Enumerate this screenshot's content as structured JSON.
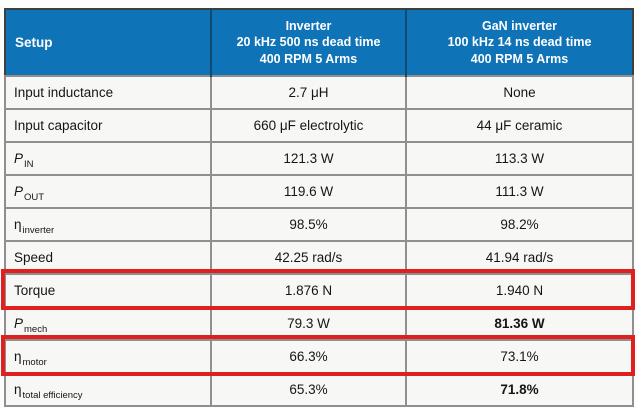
{
  "colors": {
    "header_bg": "#0f73b7",
    "header_text": "#ffffff",
    "cell_bg": "#f7f7f5",
    "grid_line": "#8f8f8f",
    "highlight_border": "#e01f1f",
    "body_text": "#151515"
  },
  "header": {
    "setup": "Setup",
    "inverter": {
      "line1": "Inverter",
      "line2": "20 kHz 500 ns dead time",
      "line3": "400 RPM 5 Arms"
    },
    "gan": {
      "line1": "GaN inverter",
      "line2": "100 kHz 14 ns dead time",
      "line3": "400 RPM 5 Arms"
    }
  },
  "rows": [
    {
      "label_main": "Input inductance",
      "label_sub": "",
      "inverter": "2.7 μH",
      "gan": "None"
    },
    {
      "label_main": "Input capacitor",
      "label_sub": "",
      "inverter": "660 μF electrolytic",
      "gan": "44 μF ceramic"
    },
    {
      "label_main": "P",
      "label_sub": "IN",
      "inverter": "121.3 W",
      "gan": "113.3 W"
    },
    {
      "label_main": "P",
      "label_sub": "OUT",
      "inverter": "119.6 W",
      "gan": "111.3 W"
    },
    {
      "label_main": "η",
      "label_sub": "inverter",
      "inverter": "98.5%",
      "gan": "98.2%"
    },
    {
      "label_main": "Speed",
      "label_sub": "",
      "inverter": "42.25 rad/s",
      "gan": "41.94 rad/s"
    },
    {
      "label_main": "Torque",
      "label_sub": "",
      "inverter": "1.876 N",
      "gan": "1.940 N",
      "highlighted": true
    },
    {
      "label_main": "P",
      "label_sub": "mech",
      "inverter": "79.3 W",
      "gan": "81.36 W",
      "gan_bold": true
    },
    {
      "label_main": "η",
      "label_sub": "motor",
      "inverter": "66.3%",
      "gan": "73.1%",
      "highlighted": true
    },
    {
      "label_main": "η",
      "label_sub": "total efficiency",
      "inverter": "65.3%",
      "gan": "71.8%",
      "gan_bold": true
    }
  ],
  "chart_data": {
    "type": "table",
    "title": "Inverter vs GaN inverter setup comparison",
    "columns": [
      "Setup",
      "Inverter 20 kHz 500 ns dead time 400 RPM 5 Arms",
      "GaN inverter 100 kHz 14 ns dead time 400 RPM 5 Arms"
    ],
    "rows": [
      [
        "Input inductance",
        "2.7 μH",
        "None"
      ],
      [
        "Input capacitor",
        "660 μF electrolytic",
        "44 μF ceramic"
      ],
      [
        "P_IN",
        "121.3 W",
        "113.3 W"
      ],
      [
        "P_OUT",
        "119.6 W",
        "111.3 W"
      ],
      [
        "η_inverter",
        "98.5%",
        "98.2%"
      ],
      [
        "Speed",
        "42.25 rad/s",
        "41.94 rad/s"
      ],
      [
        "Torque",
        "1.876 N",
        "1.940 N"
      ],
      [
        "P_mech",
        "79.3 W",
        "81.36 W"
      ],
      [
        "η_motor",
        "66.3%",
        "73.1%"
      ],
      [
        "η_total efficiency",
        "65.3%",
        "71.8%"
      ]
    ],
    "highlighted_rows": [
      "Torque",
      "η_motor"
    ],
    "bold_values": [
      "81.36 W",
      "71.8%"
    ]
  }
}
